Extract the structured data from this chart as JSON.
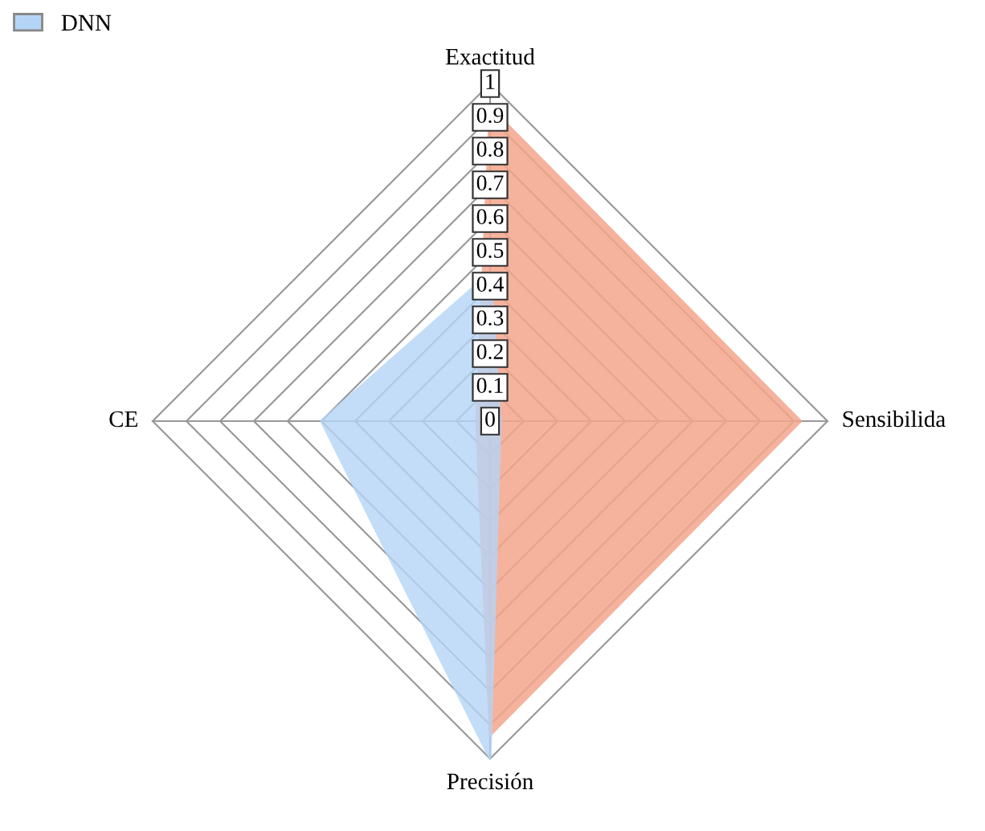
{
  "chart_data": {
    "type": "radar",
    "categories": [
      "Exactitud",
      "Sensibilida",
      "Precisión",
      "CE"
    ],
    "series": [
      {
        "color": "#f4a58c",
        "values": [
          0.93,
          0.92,
          0.93,
          0.04
        ]
      },
      {
        "name": "DNN",
        "color": "#b5d5f7",
        "values": [
          0.44,
          0.03,
          1,
          0.5
        ]
      }
    ],
    "ylim": [
      0,
      1
    ],
    "yticks": [
      0,
      0.1,
      0.2,
      0.3,
      0.4,
      0.5,
      0.6,
      0.7,
      0.8,
      0.9,
      1
    ],
    "legend": "top left",
    "grid": true
  }
}
